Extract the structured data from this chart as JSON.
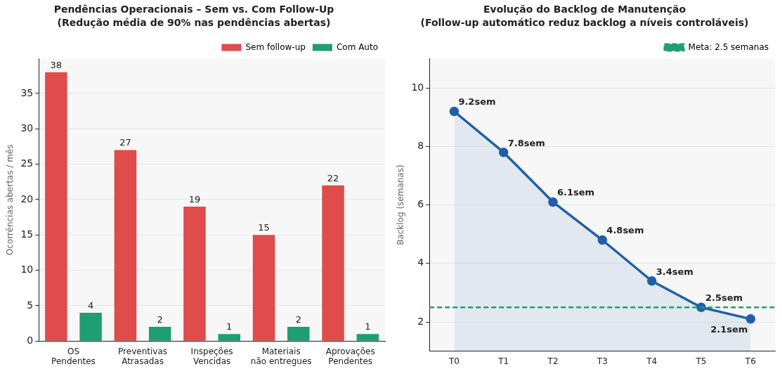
{
  "chart_data": [
    {
      "type": "bar",
      "title": "Pendências Operacionais – Sem vs. Com Follow-Up",
      "subtitle": "(Redução média de 90% nas pendências abertas)",
      "categories": [
        "OS\nPendentes",
        "Preventivas\nAtrasadas",
        "Inspeções\nVencidas",
        "Materiais\nnão entregues",
        "Aprovações\nPendentes"
      ],
      "series": [
        {
          "name": "Sem follow-up",
          "color": "#e04b4b",
          "values": [
            38,
            27,
            19,
            15,
            22
          ]
        },
        {
          "name": "Com Auto",
          "color": "#1f9e74",
          "values": [
            4,
            2,
            1,
            2,
            1
          ]
        }
      ],
      "ylabel": "Ocorrências abertas / mês",
      "ylim": [
        0,
        39.9
      ],
      "yticks": [
        0,
        5,
        10,
        15,
        20,
        25,
        30,
        35
      ],
      "grid": "y",
      "legend": "top right",
      "data_labels": true
    },
    {
      "type": "area",
      "title": "Evolução do Backlog de Manutenção",
      "subtitle": "(Follow-up automático reduz backlog a níveis controláveis)",
      "categories": [
        "T0",
        "T1",
        "T2",
        "T3",
        "T4",
        "T5",
        "T6"
      ],
      "series": [
        {
          "color": "#1f5fa8",
          "values": [
            9.2,
            7.8,
            6.1,
            4.8,
            3.4,
            2.5,
            2.1
          ],
          "value_labels": [
            "9.2sem",
            "7.8sem",
            "6.1sem",
            "4.8sem",
            "3.4sem",
            "2.5sem",
            "2.1sem"
          ]
        }
      ],
      "ylabel": "Backlog (semanas)",
      "ylim": [
        1,
        11
      ],
      "yticks": [
        2,
        4,
        6,
        8,
        10
      ],
      "ref_lines": [
        {
          "axis": "y",
          "value": 2.5,
          "label": "Meta: 2.5 semanas",
          "color": "#1f9e74",
          "line_style": "dashed"
        }
      ],
      "grid": "y",
      "legend": "top right",
      "marker": "circle",
      "line_style": "solid"
    }
  ]
}
